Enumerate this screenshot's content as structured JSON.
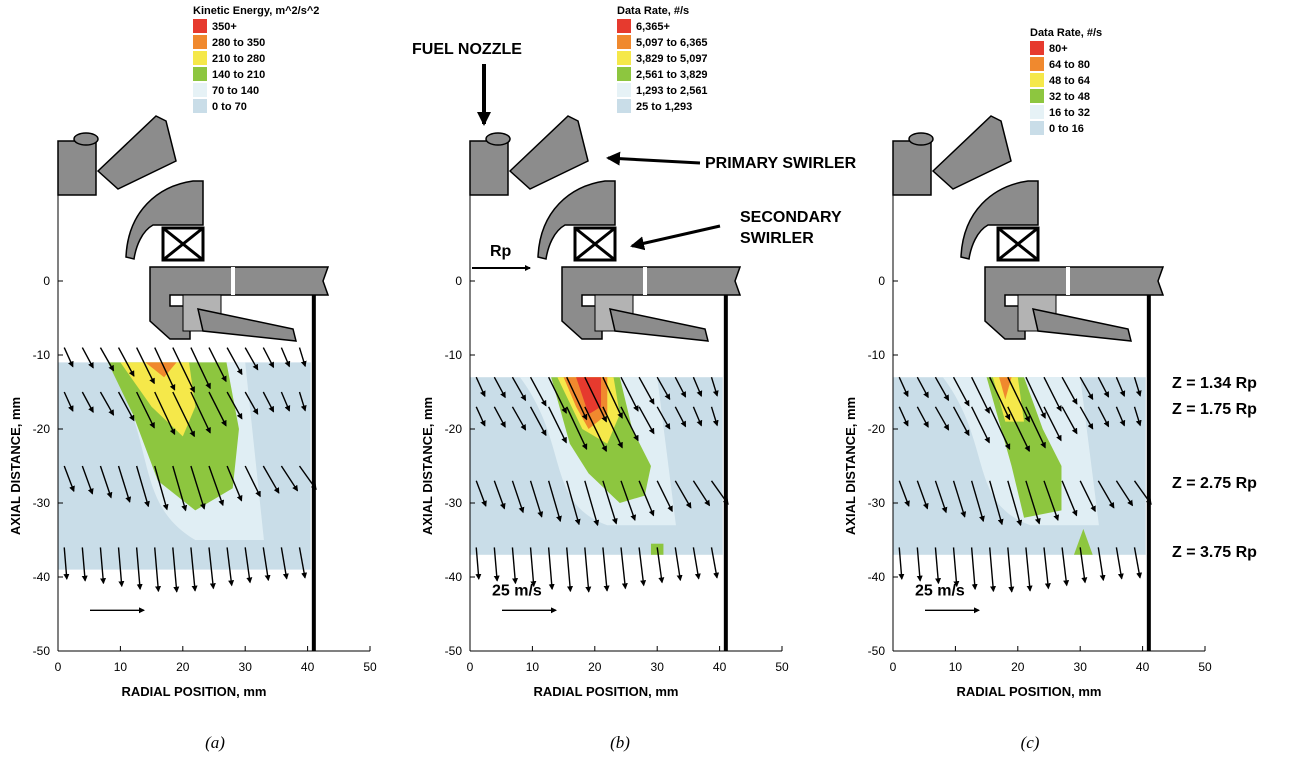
{
  "panels": [
    {
      "caption": "(a)",
      "legend": {
        "title": "Kinetic Energy, m^2/s^2",
        "entries": [
          {
            "label": "350+",
            "color": "#e63a2e"
          },
          {
            "label": "280 to 350",
            "color": "#f0892e"
          },
          {
            "label": "210 to 280",
            "color": "#f5e84a"
          },
          {
            "label": "140 to 210",
            "color": "#8dc63f"
          },
          {
            "label": "70 to 140",
            "color": "#e6f2f6"
          },
          {
            "label": "0 to 70",
            "color": "#c9dde8"
          }
        ]
      },
      "annotations": [],
      "velocity_scale_label": ""
    },
    {
      "caption": "(b)",
      "legend": {
        "title": "Data Rate, #/s",
        "entries": [
          {
            "label": "6,365+",
            "color": "#e63a2e"
          },
          {
            "label": "5,097 to 6,365",
            "color": "#f0892e"
          },
          {
            "label": "3,829 to 5,097",
            "color": "#f5e84a"
          },
          {
            "label": "2,561 to 3,829",
            "color": "#8dc63f"
          },
          {
            "label": "1,293 to 2,561",
            "color": "#e6f2f6"
          },
          {
            "label": "25 to 1,293",
            "color": "#c9dde8"
          }
        ]
      },
      "annotations": [
        "FUEL NOZZLE",
        "PRIMARY SWIRLER",
        "SECONDARY",
        "SWIRLER",
        "Rp"
      ],
      "velocity_scale_label": "25 m/s"
    },
    {
      "caption": "(c)",
      "legend": {
        "title": "Data Rate, #/s",
        "entries": [
          {
            "label": "80+",
            "color": "#e63a2e"
          },
          {
            "label": "64 to 80",
            "color": "#f0892e"
          },
          {
            "label": "48 to 64",
            "color": "#f5e84a"
          },
          {
            "label": "32 to 48",
            "color": "#8dc63f"
          },
          {
            "label": "16 to 32",
            "color": "#e6f2f6"
          },
          {
            "label": "0 to 16",
            "color": "#c9dde8"
          }
        ]
      },
      "annotations": [
        "Z = 1.34 Rp",
        "Z = 1.75 Rp",
        "Z = 2.75 Rp",
        "Z = 3.75 Rp"
      ],
      "velocity_scale_label": "25 m/s"
    }
  ],
  "chart_data": {
    "type": "heatmap",
    "xlabel": "RADIAL POSITION, mm",
    "ylabel": "AXIAL DISTANCE, mm",
    "xlim": [
      0,
      50
    ],
    "ylim": [
      -50,
      10
    ],
    "xticks": [
      "0",
      "10",
      "20",
      "30",
      "40",
      "50"
    ],
    "yticks": [
      "0",
      "-10",
      "-20",
      "-30",
      "-40",
      "-50"
    ],
    "measurement_rows_mm": [
      -13,
      -17,
      -27,
      -36
    ]
  }
}
